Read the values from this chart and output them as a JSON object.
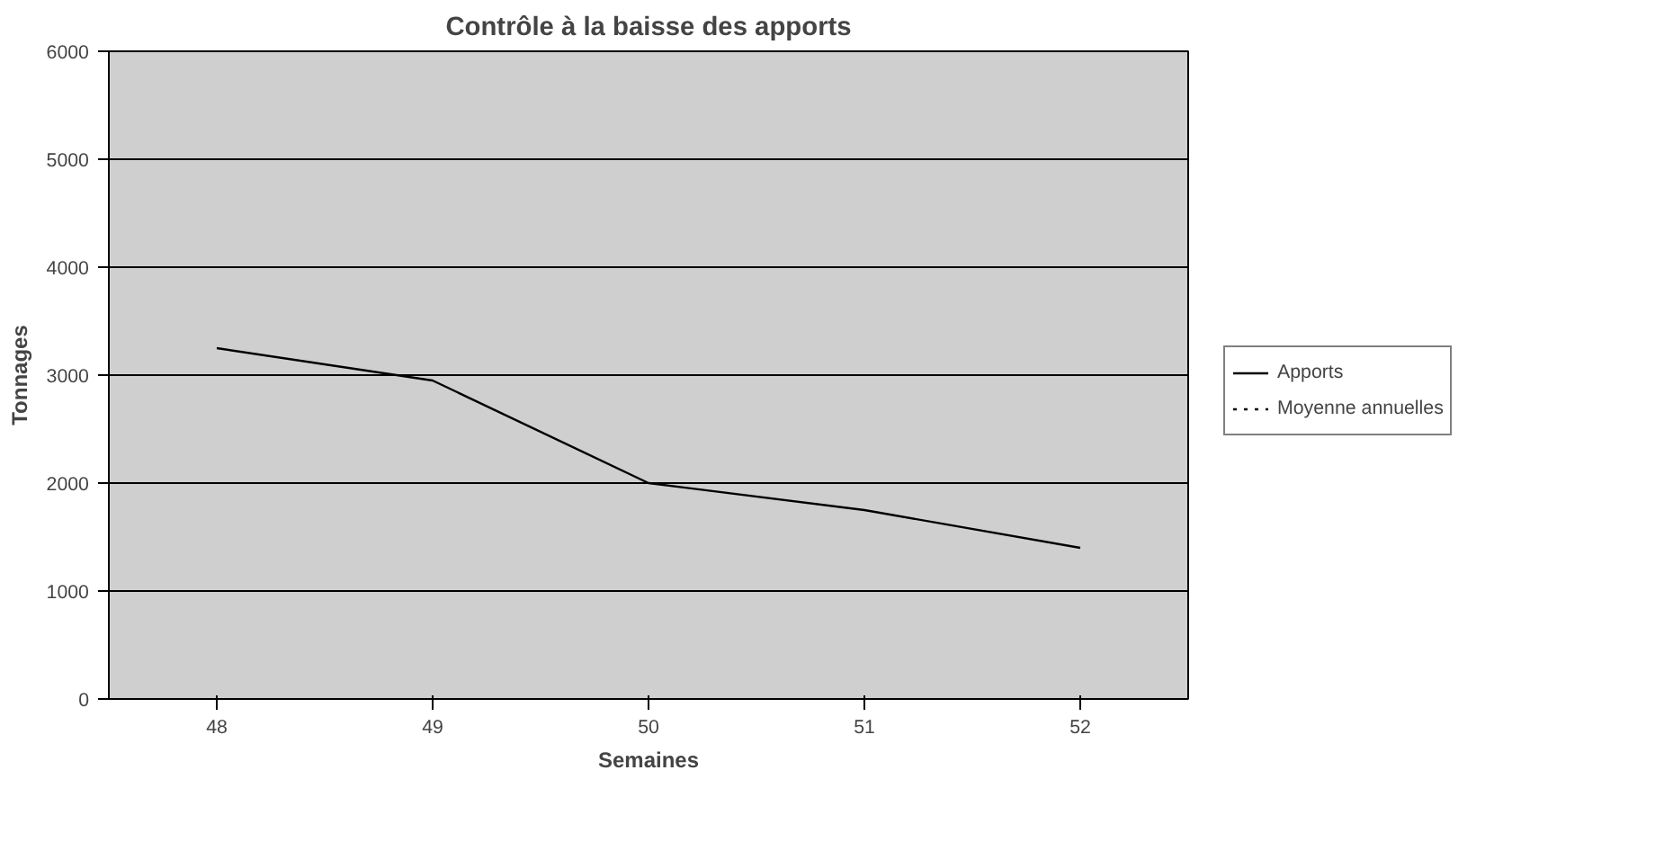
{
  "chart_data": {
    "type": "line",
    "title": "Contrôle à la baisse des apports",
    "xlabel": "Semaines",
    "ylabel": "Tonnages",
    "categories": [
      "48",
      "49",
      "50",
      "51",
      "52"
    ],
    "series": [
      {
        "name": "Apports",
        "color": "#000000",
        "values": [
          3250,
          2950,
          2000,
          1750,
          1400
        ],
        "line_style": "solid"
      },
      {
        "name": "Moyenne annuelles",
        "color": "#000000",
        "values": [
          null,
          null,
          null,
          null,
          null
        ],
        "line_style": "dotted"
      }
    ],
    "ylim": [
      0,
      6000
    ],
    "yticks": [
      0,
      1000,
      2000,
      3000,
      4000,
      5000,
      6000
    ],
    "grid": "y",
    "legend": "right",
    "marker": "none"
  }
}
